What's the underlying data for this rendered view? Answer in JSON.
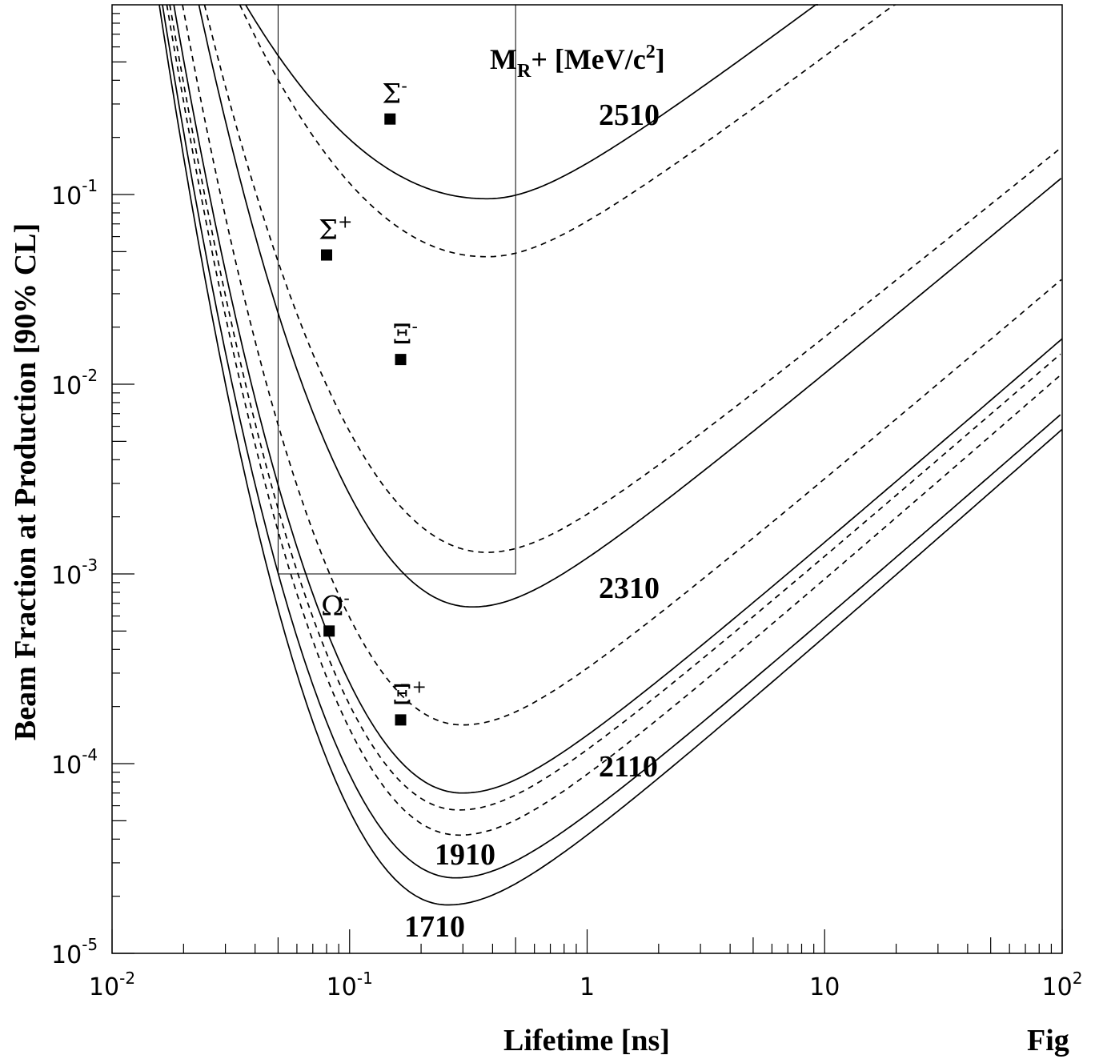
{
  "chart_data": {
    "type": "line",
    "title": "",
    "xlabel": "Lifetime [ns]",
    "ylabel": "Beam Fraction at Production [90% CL]",
    "xscale": "log",
    "yscale": "log",
    "xlim": [
      0.01,
      100
    ],
    "ylim": [
      1e-05,
      1
    ],
    "x_tick_labels": [
      {
        "base": "10",
        "exp": "-2"
      },
      {
        "base": "10",
        "exp": "-1"
      },
      {
        "base": "1",
        "exp": ""
      },
      {
        "base": "10",
        "exp": ""
      },
      {
        "base": "10",
        "exp": "2"
      }
    ],
    "y_tick_labels": [
      {
        "base": "10",
        "exp": "-5"
      },
      {
        "base": "10",
        "exp": "-4"
      },
      {
        "base": "10",
        "exp": "-3"
      },
      {
        "base": "10",
        "exp": "-2"
      },
      {
        "base": "10",
        "exp": "-1"
      }
    ],
    "legend_title": {
      "main": "M",
      "sub": "R",
      "rest": "+ [MeV/c",
      "sup": "2",
      "end": "]"
    },
    "series": [
      {
        "name": "2510",
        "style": "solid",
        "label": "2510",
        "min_x": 0.38,
        "min_y": 0.095,
        "left_x": 0.0365,
        "steep": 1.0,
        "slope": 0.95
      },
      {
        "name": "",
        "style": "dashed",
        "min_x": 0.38,
        "min_y": 0.047,
        "left_x": 0.0345,
        "steep": 1.0,
        "slope": 0.95
      },
      {
        "name": "",
        "style": "dashed",
        "min_x": 0.38,
        "min_y": 0.0013,
        "left_x": 0.0245,
        "steep": 1.0,
        "slope": 1.02
      },
      {
        "name": "2310",
        "style": "solid",
        "label": "2310",
        "min_x": 0.33,
        "min_y": 0.00067,
        "left_x": 0.0232,
        "steep": 1.0,
        "slope": 1.05
      },
      {
        "name": "",
        "style": "dashed",
        "min_x": 0.3,
        "min_y": 0.00016,
        "left_x": 0.0198,
        "steep": 1.0,
        "slope": 1.07
      },
      {
        "name": "2110",
        "style": "solid",
        "label": "2110",
        "min_x": 0.3,
        "min_y": 7e-05,
        "left_x": 0.0182,
        "steep": 1.0,
        "slope": 1.09
      },
      {
        "name": "",
        "style": "dashed",
        "min_x": 0.29,
        "min_y": 5.7e-05,
        "left_x": 0.0175,
        "steep": 1.0,
        "slope": 1.09
      },
      {
        "name": "",
        "style": "dashed",
        "min_x": 0.29,
        "min_y": 4.2e-05,
        "left_x": 0.017,
        "steep": 1.0,
        "slope": 1.1
      },
      {
        "name": "1910",
        "style": "solid",
        "label": "1910",
        "min_x": 0.28,
        "min_y": 2.5e-05,
        "left_x": 0.0163,
        "steep": 1.0,
        "slope": 1.1
      },
      {
        "name": "1710",
        "style": "solid",
        "label": "1710",
        "min_x": 0.26,
        "min_y": 1.8e-05,
        "left_x": 0.0158,
        "steep": 1.0,
        "slope": 1.11
      }
    ],
    "particles": [
      {
        "symbol": "Σ",
        "charge": "-",
        "x": 0.148,
        "y": 0.25
      },
      {
        "symbol": "Σ",
        "charge": "+",
        "x": 0.08,
        "y": 0.048
      },
      {
        "symbol": "Ξ",
        "charge": "-",
        "x": 0.164,
        "y": 0.0135
      },
      {
        "symbol": "Ω",
        "charge": "-",
        "x": 0.082,
        "y": 0.0005
      },
      {
        "symbol": "Ξ̄",
        "charge": "+",
        "x": 0.164,
        "y": 0.00017
      }
    ],
    "box": {
      "x1": 0.05,
      "x2": 0.5,
      "y1": 0.001,
      "y2": 1
    }
  },
  "figure_label": "Fig"
}
